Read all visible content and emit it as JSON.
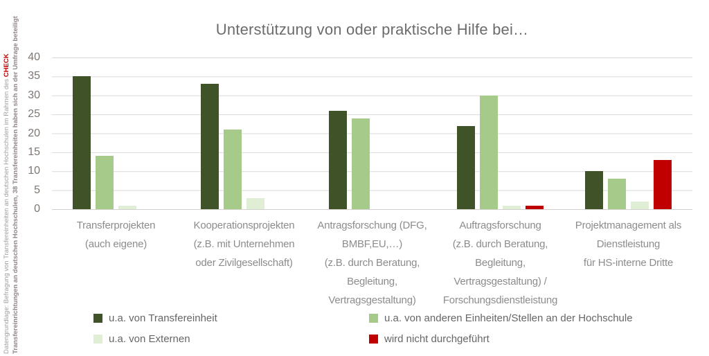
{
  "chart_data": {
    "type": "bar",
    "title": "Unterstützung von oder praktische Hilfe bei…",
    "categories": [
      [
        "Transferprojekten",
        "(auch eigene)"
      ],
      [
        "Kooperationsprojekten",
        "(z.B. mit Unternehmen",
        "oder Zivilgesellschaft)"
      ],
      [
        "Antragsforschung (DFG,",
        "BMBF,EU,…)",
        "(z.B. durch Beratung,",
        "Begleitung,",
        "Vertragsgestaltung)"
      ],
      [
        "Auftragsforschung",
        "(z.B. durch Beratung,",
        "Begleitung,",
        "Vertragsgestaltung) /",
        "Forschungsdienstleistung"
      ],
      [
        "Projektmanagement als",
        "Dienstleistung",
        "für HS-interne Dritte"
      ]
    ],
    "series": [
      {
        "name": "u.a. von Transfereinheit",
        "color": "#405227",
        "values": [
          35,
          33,
          26,
          22,
          10
        ]
      },
      {
        "name": "u.a. von anderen Einheiten/Stellen an der Hochschule",
        "color": "#a6ca89",
        "values": [
          14,
          21,
          24,
          30,
          8
        ]
      },
      {
        "name": "u.a. von Externen",
        "color": "#e1eed6",
        "values": [
          1,
          3,
          0,
          1,
          2
        ]
      },
      {
        "name": "wird nicht durchgeführt",
        "color": "#c00000",
        "values": [
          0,
          0,
          0,
          1,
          13
        ]
      }
    ],
    "ylim": [
      0,
      40
    ],
    "yticks": [
      0,
      5,
      10,
      15,
      20,
      25,
      30,
      35,
      40
    ],
    "grid": true,
    "legend_position": "bottom"
  },
  "source_note": {
    "line1": "Datengrundlage: Befragung von Transfereinheiten an deutschen Hochschulen im Rahmen des ",
    "line1_highlight": "CHECK",
    "line2": "Transfereinrichtungen an deutschen Hochschulen, 38 Transfereinheiten haben sich an der Umfrage beteiligt",
    "highlight_color": "#c00000"
  }
}
